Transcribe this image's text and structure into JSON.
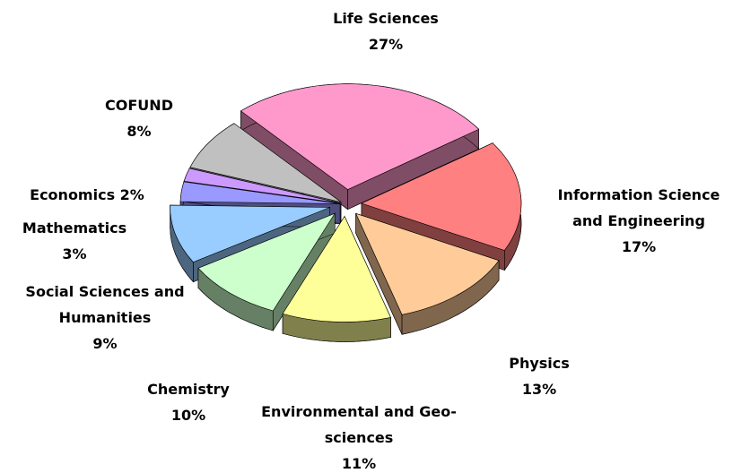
{
  "chart_data": {
    "type": "pie",
    "categories": [
      "Life Sciences",
      "Information Science and Engineering",
      "Physics",
      "Environmental and Geo-sciences",
      "Chemistry",
      "Social Sciences and Humanities",
      "Mathematics",
      "Economics",
      "COFUND"
    ],
    "values": [
      27,
      17,
      13,
      11,
      10,
      9,
      3,
      2,
      8
    ],
    "value_labels": [
      "27%",
      "17%",
      "13%",
      "11%",
      "10%",
      "9%",
      "3%",
      "2%",
      "8%"
    ],
    "colors": [
      "#ff99cc",
      "#ff8080",
      "#ffcc99",
      "#ffff99",
      "#ccffcc",
      "#99ccff",
      "#9999ff",
      "#cc99ff",
      "#c0c0c0"
    ]
  }
}
